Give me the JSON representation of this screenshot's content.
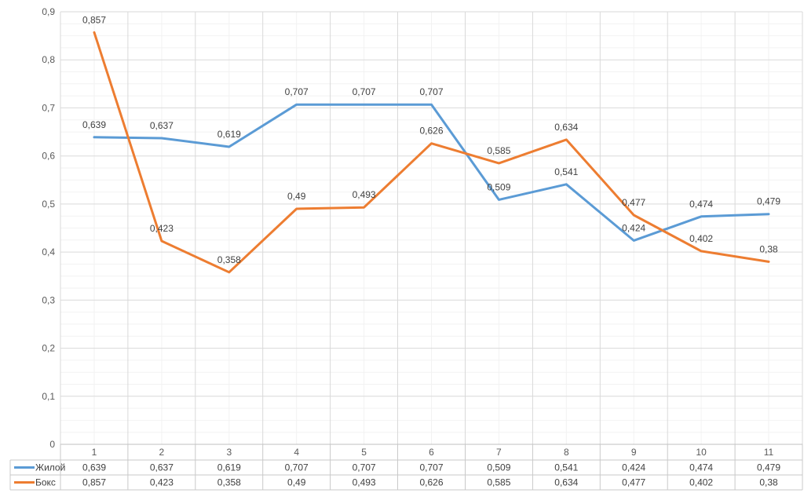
{
  "chart_data": {
    "type": "line",
    "categories": [
      "1",
      "2",
      "3",
      "4",
      "5",
      "6",
      "7",
      "8",
      "9",
      "10",
      "11"
    ],
    "series": [
      {
        "name": "Жилой",
        "color": "#5B9BD5",
        "values": [
          0.639,
          0.637,
          0.619,
          0.707,
          0.707,
          0.707,
          0.509,
          0.541,
          0.424,
          0.474,
          0.479
        ],
        "labels": [
          "0,639",
          "0,637",
          "0,619",
          "0,707",
          "0,707",
          "0,707",
          "0,509",
          "0,541",
          "0,424",
          "0,474",
          "0,479"
        ]
      },
      {
        "name": "Бокс",
        "color": "#ED7D31",
        "values": [
          0.857,
          0.423,
          0.358,
          0.49,
          0.493,
          0.626,
          0.585,
          0.634,
          0.477,
          0.402,
          0.38
        ],
        "labels": [
          "0,857",
          "0,423",
          "0,358",
          "0,49",
          "0,493",
          "0,626",
          "0,585",
          "0,634",
          "0,477",
          "0,402",
          "0,38"
        ]
      }
    ],
    "ylim": [
      0,
      0.9
    ],
    "ytick_step": 0.1,
    "ytick_minor_step": 0.025,
    "yticklabels": [
      "0",
      "0,1",
      "0,2",
      "0,3",
      "0,4",
      "0,5",
      "0,6",
      "0,7",
      "0,8",
      "0,9"
    ],
    "grid": {
      "on": true,
      "major_color": "#D9D9D9",
      "minor_color": "#F2F2F2"
    },
    "axis_color": "#BFBFBF",
    "table_border_color": "#C9C9C9",
    "data_labels": true,
    "legend_position": "data-table-left"
  }
}
